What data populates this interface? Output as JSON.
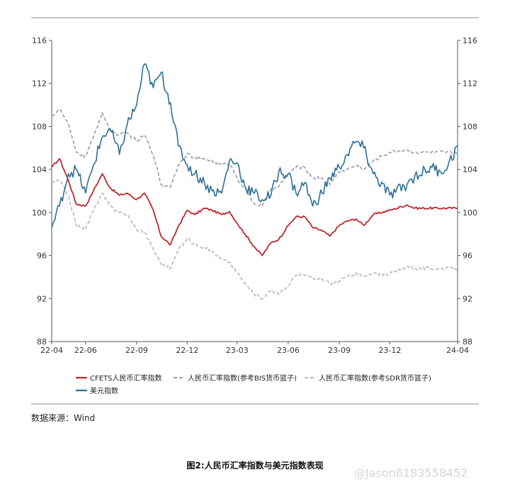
{
  "chart_data": {
    "type": "line",
    "x_ticks": [
      "22-04",
      "22-06",
      "22-09",
      "22-12",
      "23-03",
      "23-06",
      "23-09",
      "23-12",
      "24-04"
    ],
    "y_ticks": [
      "88",
      "92",
      "96",
      "100",
      "104",
      "108",
      "112",
      "116"
    ],
    "ylim": [
      88,
      116
    ],
    "xlim": [
      "2022-04",
      "2024-04"
    ],
    "grid": false,
    "legend_position": "bottom",
    "series": [
      {
        "name": "CFETS人民币汇率指数",
        "color": "#c0272d",
        "style": "solid",
        "points": [
          [
            "2022-04-01",
            104.2
          ],
          [
            "2022-04-15",
            105.0
          ],
          [
            "2022-05-01",
            103.0
          ],
          [
            "2022-05-15",
            100.8
          ],
          [
            "2022-06-01",
            100.6
          ],
          [
            "2022-06-15",
            102.0
          ],
          [
            "2022-07-01",
            103.6
          ],
          [
            "2022-07-15",
            102.3
          ],
          [
            "2022-08-01",
            101.6
          ],
          [
            "2022-08-15",
            101.8
          ],
          [
            "2022-09-01",
            101.2
          ],
          [
            "2022-09-15",
            101.8
          ],
          [
            "2022-10-01",
            100.2
          ],
          [
            "2022-10-15",
            97.8
          ],
          [
            "2022-11-01",
            97.0
          ],
          [
            "2022-11-15",
            98.7
          ],
          [
            "2022-12-01",
            100.2
          ],
          [
            "2022-12-15",
            99.8
          ],
          [
            "2023-01-01",
            100.4
          ],
          [
            "2023-01-15",
            100.2
          ],
          [
            "2023-02-01",
            99.8
          ],
          [
            "2023-02-15",
            100.1
          ],
          [
            "2023-03-01",
            99.0
          ],
          [
            "2023-03-15",
            98.0
          ],
          [
            "2023-04-01",
            96.8
          ],
          [
            "2023-04-15",
            96.0
          ],
          [
            "2023-05-01",
            97.2
          ],
          [
            "2023-05-15",
            97.5
          ],
          [
            "2023-06-01",
            98.8
          ],
          [
            "2023-06-15",
            99.6
          ],
          [
            "2023-07-01",
            99.6
          ],
          [
            "2023-07-15",
            98.6
          ],
          [
            "2023-08-01",
            98.3
          ],
          [
            "2023-08-15",
            97.8
          ],
          [
            "2023-09-01",
            98.8
          ],
          [
            "2023-09-15",
            99.2
          ],
          [
            "2023-10-01",
            99.4
          ],
          [
            "2023-10-15",
            98.8
          ],
          [
            "2023-11-01",
            99.8
          ],
          [
            "2023-12-01",
            100.2
          ],
          [
            "2024-01-01",
            100.7
          ],
          [
            "2024-01-15",
            100.4
          ],
          [
            "2024-04-01",
            100.4
          ]
        ]
      },
      {
        "name": "人民币汇率指数(参考BIS货币篮子)",
        "color": "#a0a6ad",
        "style": "dashed",
        "points": [
          [
            "2022-04-01",
            109.0
          ],
          [
            "2022-04-15",
            109.6
          ],
          [
            "2022-05-01",
            108.2
          ],
          [
            "2022-05-15",
            105.6
          ],
          [
            "2022-06-01",
            105.2
          ],
          [
            "2022-06-15",
            107.0
          ],
          [
            "2022-07-01",
            109.3
          ],
          [
            "2022-07-15",
            107.6
          ],
          [
            "2022-08-01",
            107.2
          ],
          [
            "2022-08-15",
            107.4
          ],
          [
            "2022-09-01",
            106.6
          ],
          [
            "2022-09-15",
            107.2
          ],
          [
            "2022-10-01",
            105.4
          ],
          [
            "2022-10-15",
            102.6
          ],
          [
            "2022-11-01",
            102.4
          ],
          [
            "2022-11-15",
            104.4
          ],
          [
            "2022-12-01",
            105.5
          ],
          [
            "2022-12-15",
            105.0
          ],
          [
            "2023-01-01",
            105.0
          ],
          [
            "2023-01-15",
            104.8
          ],
          [
            "2023-02-01",
            104.4
          ],
          [
            "2023-02-15",
            104.6
          ],
          [
            "2023-03-01",
            103.2
          ],
          [
            "2023-03-15",
            102.2
          ],
          [
            "2023-04-01",
            100.8
          ],
          [
            "2023-04-15",
            100.6
          ],
          [
            "2023-05-01",
            102.2
          ],
          [
            "2023-05-15",
            102.4
          ],
          [
            "2023-06-01",
            103.6
          ],
          [
            "2023-06-15",
            104.2
          ],
          [
            "2023-07-01",
            104.2
          ],
          [
            "2023-07-15",
            103.2
          ],
          [
            "2023-08-01",
            103.2
          ],
          [
            "2023-08-15",
            102.6
          ],
          [
            "2023-09-01",
            103.8
          ],
          [
            "2023-09-15",
            104.0
          ],
          [
            "2023-10-01",
            104.4
          ],
          [
            "2023-10-15",
            104.0
          ],
          [
            "2023-11-01",
            104.8
          ],
          [
            "2023-12-01",
            105.6
          ],
          [
            "2024-01-01",
            105.8
          ],
          [
            "2024-01-15",
            105.6
          ],
          [
            "2024-04-01",
            105.6
          ]
        ]
      },
      {
        "name": "人民币汇率指数(参考SDR货币篮子)",
        "color": "#b8bdc2",
        "style": "dashed",
        "points": [
          [
            "2022-04-01",
            102.8
          ],
          [
            "2022-04-15",
            103.0
          ],
          [
            "2022-05-01",
            101.6
          ],
          [
            "2022-05-15",
            98.8
          ],
          [
            "2022-06-01",
            98.5
          ],
          [
            "2022-06-15",
            100.2
          ],
          [
            "2022-07-01",
            101.8
          ],
          [
            "2022-07-15",
            100.6
          ],
          [
            "2022-08-01",
            100.0
          ],
          [
            "2022-08-15",
            99.8
          ],
          [
            "2022-09-01",
            98.4
          ],
          [
            "2022-09-15",
            98.2
          ],
          [
            "2022-10-01",
            96.6
          ],
          [
            "2022-10-15",
            95.2
          ],
          [
            "2022-11-01",
            94.8
          ],
          [
            "2022-11-15",
            96.5
          ],
          [
            "2022-12-01",
            97.6
          ],
          [
            "2022-12-15",
            97.0
          ],
          [
            "2023-01-01",
            96.8
          ],
          [
            "2023-01-15",
            96.4
          ],
          [
            "2023-02-01",
            95.6
          ],
          [
            "2023-02-15",
            95.4
          ],
          [
            "2023-03-01",
            94.4
          ],
          [
            "2023-03-15",
            93.4
          ],
          [
            "2023-04-01",
            92.4
          ],
          [
            "2023-04-15",
            92.0
          ],
          [
            "2023-05-01",
            92.8
          ],
          [
            "2023-05-15",
            92.4
          ],
          [
            "2023-06-01",
            93.2
          ],
          [
            "2023-06-15",
            94.2
          ],
          [
            "2023-07-01",
            94.2
          ],
          [
            "2023-07-15",
            93.8
          ],
          [
            "2023-08-01",
            93.8
          ],
          [
            "2023-08-15",
            93.4
          ],
          [
            "2023-09-01",
            93.6
          ],
          [
            "2023-09-15",
            94.0
          ],
          [
            "2023-10-01",
            94.4
          ],
          [
            "2023-10-15",
            94.0
          ],
          [
            "2023-11-01",
            94.3
          ],
          [
            "2023-12-01",
            94.3
          ],
          [
            "2024-01-01",
            95.0
          ],
          [
            "2024-01-15",
            94.8
          ],
          [
            "2024-04-01",
            94.8
          ]
        ]
      },
      {
        "name": "美元指数",
        "color": "#2b6f95",
        "style": "solid",
        "points": [
          [
            "2022-04-01",
            98.6
          ],
          [
            "2022-04-15",
            100.6
          ],
          [
            "2022-05-01",
            103.6
          ],
          [
            "2022-05-15",
            104.0
          ],
          [
            "2022-06-01",
            101.8
          ],
          [
            "2022-06-15",
            104.4
          ],
          [
            "2022-07-01",
            107.0
          ],
          [
            "2022-07-15",
            107.8
          ],
          [
            "2022-08-01",
            105.4
          ],
          [
            "2022-08-15",
            108.2
          ],
          [
            "2022-09-01",
            110.0
          ],
          [
            "2022-09-15",
            113.8
          ],
          [
            "2022-10-01",
            111.6
          ],
          [
            "2022-10-15",
            113.0
          ],
          [
            "2022-11-01",
            110.2
          ],
          [
            "2022-11-15",
            106.2
          ],
          [
            "2022-12-01",
            104.4
          ],
          [
            "2022-12-15",
            103.6
          ],
          [
            "2023-01-01",
            102.8
          ],
          [
            "2023-01-15",
            102.0
          ],
          [
            "2023-02-01",
            101.8
          ],
          [
            "2023-02-15",
            104.8
          ],
          [
            "2023-03-01",
            104.6
          ],
          [
            "2023-03-15",
            102.4
          ],
          [
            "2023-04-01",
            101.8
          ],
          [
            "2023-04-15",
            101.2
          ],
          [
            "2023-05-01",
            101.6
          ],
          [
            "2023-05-15",
            103.8
          ],
          [
            "2023-06-01",
            103.6
          ],
          [
            "2023-06-15",
            101.8
          ],
          [
            "2023-07-01",
            102.8
          ],
          [
            "2023-07-15",
            100.6
          ],
          [
            "2023-08-01",
            101.8
          ],
          [
            "2023-08-15",
            103.2
          ],
          [
            "2023-09-01",
            104.2
          ],
          [
            "2023-09-15",
            105.4
          ],
          [
            "2023-10-01",
            106.6
          ],
          [
            "2023-10-15",
            106.0
          ],
          [
            "2023-11-01",
            103.6
          ],
          [
            "2023-12-01",
            101.6
          ],
          [
            "2024-01-01",
            102.6
          ],
          [
            "2024-01-15",
            103.4
          ],
          [
            "2024-02-15",
            104.2
          ],
          [
            "2024-03-01",
            103.8
          ],
          [
            "2024-03-15",
            104.4
          ],
          [
            "2024-04-01",
            106.2
          ]
        ]
      }
    ]
  },
  "source": "数据来源：Wind",
  "caption": "图2:人民币汇率指数与美元指数表现",
  "watermark": "@Jason6183558452"
}
